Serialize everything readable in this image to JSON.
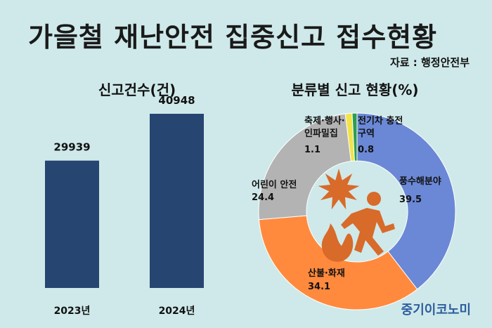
{
  "title": "가을철 재난안전 집중신고 접수현황",
  "source": "자료 : 행정안전부",
  "brand": "중기이코노미",
  "chart_data": [
    {
      "type": "bar",
      "title": "신고건수(건)",
      "categories": [
        "2023년",
        "2024년"
      ],
      "values": [
        29939,
        40948
      ],
      "color": "#274571"
    },
    {
      "type": "pie",
      "title": "분류별 신고 현황(%)",
      "slices": [
        {
          "label": "풍수해분야",
          "value": 39.5,
          "color": "#6a88d6"
        },
        {
          "label": "산불·화재",
          "value": 34.1,
          "color": "#ff8a3d"
        },
        {
          "label": "어린이 안전",
          "value": 24.4,
          "color": "#b3b3b3"
        },
        {
          "label": "축제·행사·인파밀집",
          "value": 1.1,
          "color": "#f2e34a"
        },
        {
          "label": "전기차 충전구역",
          "value": 0.8,
          "color": "#2c9e4e"
        }
      ],
      "icon": "fire-emergency-icon",
      "icon_color": "#d86a2a"
    }
  ]
}
